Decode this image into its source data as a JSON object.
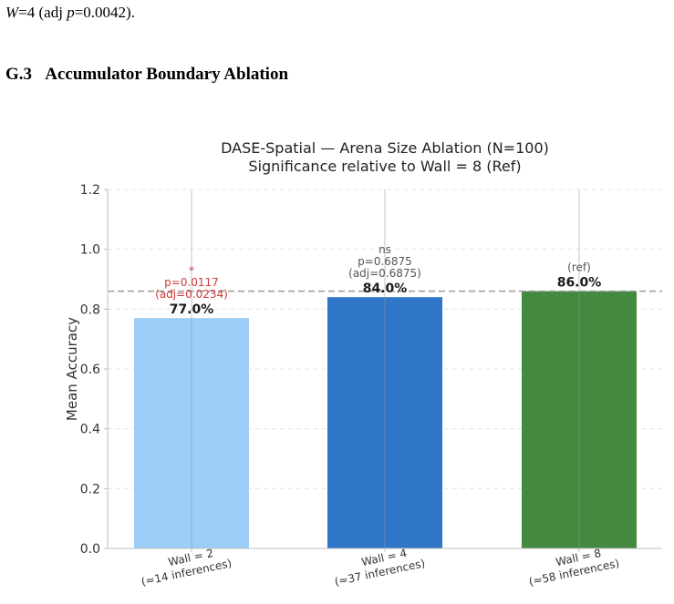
{
  "page": {
    "top_line": {
      "var": "W",
      "pre": "=4 (adj ",
      "pvar": "p",
      "post": "=0.0042)."
    },
    "section": {
      "number": "G.3",
      "title": "Accumulator Boundary Ablation"
    }
  },
  "chart_data": {
    "type": "bar",
    "title": "DASE-Spatial — Arena Size Ablation  (N=100)",
    "subtitle": "Significance relative to Wall = 8 (Ref)",
    "xlabel": "",
    "ylabel": "Mean Accuracy",
    "ylim": [
      0,
      1.2
    ],
    "yticks": [
      "0.0",
      "0.2",
      "0.4",
      "0.6",
      "0.8",
      "1.0",
      "1.2"
    ],
    "grid": true,
    "reference_line": 0.86,
    "categories": [
      {
        "line1": "Wall = 2",
        "line2": "(≈14 inferences)"
      },
      {
        "line1": "Wall = 4",
        "line2": "(≈37 inferences)"
      },
      {
        "line1": "Wall = 8",
        "line2": "(≈58 inferences)"
      }
    ],
    "values": [
      0.77,
      0.84,
      0.86
    ],
    "value_labels": [
      "77.0%",
      "84.0%",
      "86.0%"
    ],
    "bar_colors": [
      "#9ccdf6",
      "#2f76c8",
      "#43893f"
    ],
    "error_bar_tops": [
      1.2,
      1.2,
      1.2
    ],
    "annotations": [
      {
        "lines": [
          "*",
          "p=0.0117",
          "(adj=0.0234)"
        ],
        "color": "#cc3a3a"
      },
      {
        "lines": [
          "ns",
          "p=0.6875",
          "(adj=0.6875)"
        ],
        "color": "#555555"
      },
      {
        "lines": [
          "(ref)"
        ],
        "color": "#555555"
      }
    ]
  }
}
